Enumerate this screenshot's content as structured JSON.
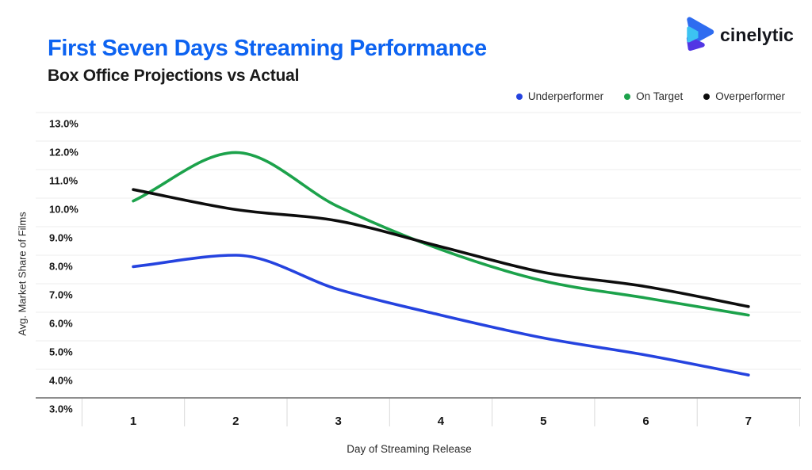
{
  "header": {
    "title": "First Seven Days Streaming Performance",
    "subtitle": "Box Office Projections vs Actual",
    "brand": "cinelytic"
  },
  "legend": {
    "items": [
      {
        "label": "Underperformer",
        "color": "#2543df"
      },
      {
        "label": "On Target",
        "color": "#1ca24b"
      },
      {
        "label": "Overperformer",
        "color": "#0d0d0d"
      }
    ]
  },
  "chart_data": {
    "type": "line",
    "title": "First Seven Days Streaming Performance",
    "subtitle": "Box Office Projections vs Actual",
    "xlabel": "Day of Streaming Release",
    "ylabel": "Avg. Market Share of Films",
    "x": [
      1,
      2,
      3,
      4,
      5,
      6,
      7
    ],
    "x_tick_labels": [
      "1",
      "2",
      "3",
      "4",
      "5",
      "6",
      "7"
    ],
    "y_tick_labels": [
      "13.0%",
      "12.0%",
      "11.0%",
      "10.0%",
      "9.0%",
      "8.0%",
      "7.0%",
      "6.0%",
      "5.0%",
      "4.0%",
      "3.0%"
    ],
    "ylim": [
      3.0,
      13.0
    ],
    "y_step": 1.0,
    "y_unit": "%",
    "grid": "horizontal",
    "legend_position": "top-right",
    "curve": "smooth-monotone",
    "series": [
      {
        "name": "Underperformer",
        "color": "#2543df",
        "values": [
          7.6,
          8.0,
          6.8,
          5.9,
          5.1,
          4.5,
          3.8
        ]
      },
      {
        "name": "On Target",
        "color": "#1ca24b",
        "values": [
          9.9,
          11.6,
          9.7,
          8.2,
          7.1,
          6.5,
          5.9
        ]
      },
      {
        "name": "Overperformer",
        "color": "#0d0d0d",
        "values": [
          10.3,
          9.6,
          9.2,
          8.3,
          7.4,
          6.9,
          6.2
        ]
      }
    ],
    "style": {
      "gridline_color": "#ededed",
      "axis_line_color": "#4a4a4a",
      "tick_color": "#d9d9d9",
      "tick_label_color": "#171717"
    }
  }
}
